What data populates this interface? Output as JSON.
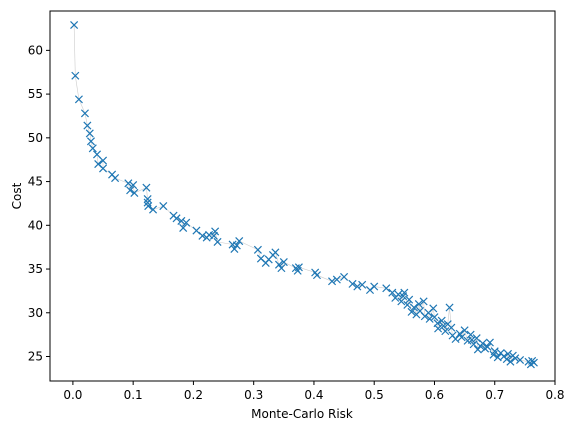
{
  "chart_data": {
    "type": "scatter",
    "xlabel": "Monte-Carlo Risk",
    "ylabel": "Cost",
    "xlim": [
      -0.038,
      0.8
    ],
    "ylim": [
      22.2,
      64.5
    ],
    "xticks": [
      0.0,
      0.1,
      0.2,
      0.3,
      0.4,
      0.5,
      0.6,
      0.7,
      0.8
    ],
    "xtick_labels": [
      "0.0",
      "0.1",
      "0.2",
      "0.3",
      "0.4",
      "0.5",
      "0.6",
      "0.7",
      "0.8"
    ],
    "yticks": [
      25,
      30,
      35,
      40,
      45,
      50,
      55,
      60
    ],
    "ytick_labels": [
      "25",
      "30",
      "35",
      "40",
      "45",
      "50",
      "55",
      "60"
    ],
    "grid": false,
    "marker": "x",
    "marker_color": "#1f77b4",
    "connect_line_color": "#cccccc",
    "points": [
      [
        0.002,
        62.9
      ],
      [
        0.004,
        57.1
      ],
      [
        0.01,
        54.4
      ],
      [
        0.02,
        52.8
      ],
      [
        0.024,
        51.4
      ],
      [
        0.028,
        50.5
      ],
      [
        0.03,
        49.6
      ],
      [
        0.033,
        48.8
      ],
      [
        0.04,
        48.1
      ],
      [
        0.042,
        47.0
      ],
      [
        0.05,
        47.4
      ],
      [
        0.05,
        46.5
      ],
      [
        0.065,
        45.8
      ],
      [
        0.07,
        45.4
      ],
      [
        0.092,
        44.8
      ],
      [
        0.095,
        44.0
      ],
      [
        0.1,
        44.6
      ],
      [
        0.102,
        43.7
      ],
      [
        0.122,
        44.3
      ],
      [
        0.124,
        43.0
      ],
      [
        0.124,
        42.6
      ],
      [
        0.125,
        42.2
      ],
      [
        0.133,
        41.8
      ],
      [
        0.15,
        42.2
      ],
      [
        0.167,
        41.1
      ],
      [
        0.172,
        40.8
      ],
      [
        0.18,
        40.5
      ],
      [
        0.183,
        39.7
      ],
      [
        0.188,
        40.3
      ],
      [
        0.205,
        39.4
      ],
      [
        0.215,
        38.8
      ],
      [
        0.222,
        38.6
      ],
      [
        0.226,
        38.9
      ],
      [
        0.234,
        38.8
      ],
      [
        0.236,
        39.3
      ],
      [
        0.24,
        38.1
      ],
      [
        0.265,
        37.8
      ],
      [
        0.268,
        37.3
      ],
      [
        0.272,
        37.7
      ],
      [
        0.276,
        38.2
      ],
      [
        0.307,
        37.2
      ],
      [
        0.312,
        36.2
      ],
      [
        0.32,
        35.7
      ],
      [
        0.325,
        36.1
      ],
      [
        0.332,
        36.6
      ],
      [
        0.336,
        36.9
      ],
      [
        0.342,
        35.5
      ],
      [
        0.346,
        35.1
      ],
      [
        0.35,
        35.8
      ],
      [
        0.37,
        35.1
      ],
      [
        0.373,
        34.8
      ],
      [
        0.375,
        35.2
      ],
      [
        0.402,
        34.6
      ],
      [
        0.405,
        34.3
      ],
      [
        0.43,
        33.6
      ],
      [
        0.438,
        33.8
      ],
      [
        0.45,
        34.1
      ],
      [
        0.464,
        33.3
      ],
      [
        0.472,
        33.0
      ],
      [
        0.48,
        33.2
      ],
      [
        0.493,
        32.6
      ],
      [
        0.5,
        33.0
      ],
      [
        0.52,
        32.8
      ],
      [
        0.53,
        32.3
      ],
      [
        0.535,
        31.7
      ],
      [
        0.54,
        32.1
      ],
      [
        0.545,
        31.3
      ],
      [
        0.548,
        31.9
      ],
      [
        0.55,
        32.3
      ],
      [
        0.555,
        30.9
      ],
      [
        0.558,
        31.5
      ],
      [
        0.562,
        30.1
      ],
      [
        0.566,
        30.6
      ],
      [
        0.57,
        29.8
      ],
      [
        0.574,
        31.0
      ],
      [
        0.576,
        30.2
      ],
      [
        0.582,
        31.3
      ],
      [
        0.584,
        29.6
      ],
      [
        0.59,
        30.0
      ],
      [
        0.592,
        29.3
      ],
      [
        0.598,
        30.5
      ],
      [
        0.6,
        29.5
      ],
      [
        0.605,
        28.8
      ],
      [
        0.606,
        28.2
      ],
      [
        0.612,
        29.1
      ],
      [
        0.615,
        28.5
      ],
      [
        0.618,
        27.9
      ],
      [
        0.622,
        28.7
      ],
      [
        0.625,
        30.6
      ],
      [
        0.628,
        28.3
      ],
      [
        0.63,
        27.4
      ],
      [
        0.635,
        27.0
      ],
      [
        0.642,
        27.6
      ],
      [
        0.645,
        27.2
      ],
      [
        0.65,
        28.0
      ],
      [
        0.655,
        26.8
      ],
      [
        0.66,
        27.5
      ],
      [
        0.662,
        26.9
      ],
      [
        0.665,
        26.4
      ],
      [
        0.67,
        27.1
      ],
      [
        0.672,
        25.8
      ],
      [
        0.676,
        26.2
      ],
      [
        0.68,
        26.5
      ],
      [
        0.684,
        25.9
      ],
      [
        0.688,
        26.1
      ],
      [
        0.692,
        26.6
      ],
      [
        0.698,
        25.2
      ],
      [
        0.7,
        25.6
      ],
      [
        0.705,
        24.9
      ],
      [
        0.71,
        25.4
      ],
      [
        0.715,
        25.0
      ],
      [
        0.72,
        24.7
      ],
      [
        0.722,
        25.3
      ],
      [
        0.726,
        24.4
      ],
      [
        0.73,
        25.1
      ],
      [
        0.734,
        24.8
      ],
      [
        0.742,
        24.6
      ],
      [
        0.756,
        24.4
      ],
      [
        0.76,
        24.1
      ],
      [
        0.762,
        24.5
      ],
      [
        0.765,
        24.3
      ]
    ]
  }
}
